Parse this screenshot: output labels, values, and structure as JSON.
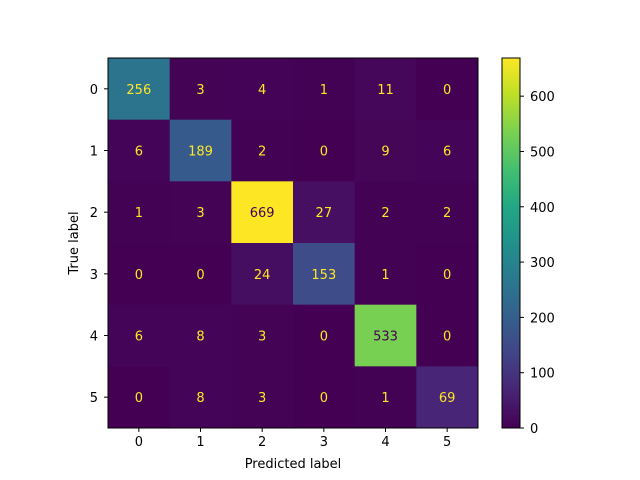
{
  "chart_data": {
    "type": "heatmap",
    "xlabel": "Predicted label",
    "ylabel": "True label",
    "x_categories": [
      "0",
      "1",
      "2",
      "3",
      "4",
      "5"
    ],
    "y_categories": [
      "0",
      "1",
      "2",
      "3",
      "4",
      "5"
    ],
    "matrix": [
      [
        256,
        3,
        4,
        1,
        11,
        0
      ],
      [
        6,
        189,
        2,
        0,
        9,
        6
      ],
      [
        1,
        3,
        669,
        27,
        2,
        2
      ],
      [
        0,
        0,
        24,
        153,
        1,
        0
      ],
      [
        6,
        8,
        3,
        0,
        533,
        0
      ],
      [
        0,
        8,
        3,
        0,
        1,
        69
      ]
    ],
    "colormap": "viridis",
    "vmin": 0,
    "vmax": 669,
    "colorbar": {
      "ticks": [
        0,
        100,
        200,
        300,
        400,
        500,
        600
      ],
      "tick_labels": [
        "0",
        "100",
        "200",
        "300",
        "400",
        "500",
        "600"
      ]
    },
    "grid": false,
    "text_colors": {
      "on_dark": "#fde725",
      "on_light": "#440154"
    }
  }
}
